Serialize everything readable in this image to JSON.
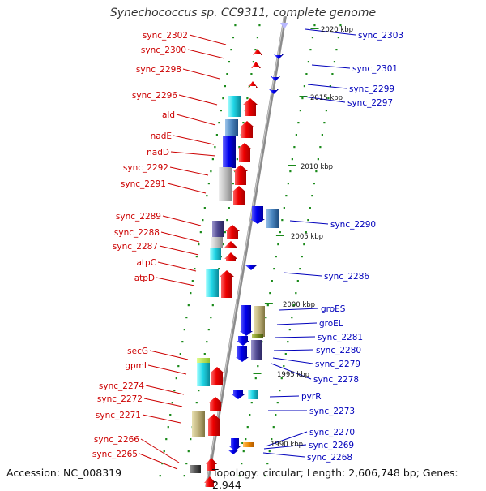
{
  "title": "Synechococcus sp. CC9311, complete genome",
  "footer": {
    "accession": "Accession: NC_008319",
    "topology": "Topology: circular; Length: 2,606,748 bp; Genes: 2,944"
  },
  "colors": {
    "left_label": "#cc0000",
    "right_label": "#0000bb",
    "backbone": "#8c8c8c",
    "tick": "#1a8a1a",
    "forward_gene": "#ee0000",
    "reverse_gene": "#0000ee"
  },
  "scale_labels": [
    "2020 kbp",
    "2015 kbp",
    "2010 kbp",
    "2005 kbp",
    "2000 kbp",
    "1995 kbp",
    "1990 kbp"
  ],
  "left_genes": [
    "sync_2302",
    "sync_2300",
    "sync_2298",
    "sync_2296",
    "ald",
    "nadE",
    "nadD",
    "sync_2292",
    "sync_2291",
    "sync_2289",
    "sync_2288",
    "sync_2287",
    "atpC",
    "atpD",
    "secG",
    "gpmI",
    "sync_2274",
    "sync_2272",
    "sync_2271",
    "sync_2266",
    "sync_2265"
  ],
  "right_genes": [
    "sync_2303",
    "sync_2301",
    "sync_2299",
    "sync_2297",
    "sync_2290",
    "sync_2286",
    "groES",
    "groEL",
    "sync_2281",
    "sync_2280",
    "sync_2279",
    "sync_2278",
    "pyrR",
    "sync_2273",
    "sync_2270",
    "sync_2269",
    "sync_2268"
  ]
}
